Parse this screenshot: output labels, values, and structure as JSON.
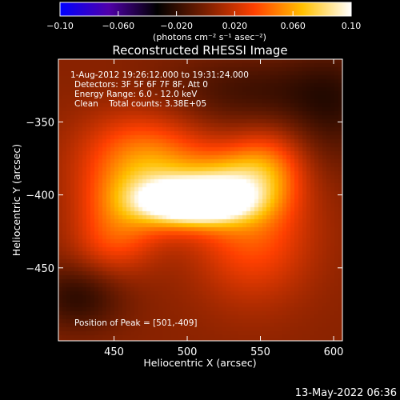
{
  "chart_data": {
    "type": "heatmap",
    "title": "Reconstructed RHESSI Image",
    "xlabel": "Heliocentric X (arcsec)",
    "ylabel": "Heliocentric Y (arcsec)",
    "xlim": [
      412,
      606
    ],
    "ylim": [
      -500,
      -307
    ],
    "x_ticks": [
      450,
      500,
      550,
      600
    ],
    "y_ticks": [
      -350,
      -400,
      -450
    ],
    "colorbar": {
      "min": -0.1,
      "max": 0.1,
      "ticks": [
        "-0.10",
        "-0.060",
        "-0.020",
        "0.020",
        "0.060",
        "0.10"
      ],
      "unit_label": "(photons cm⁻² s⁻¹ asec⁻²)",
      "colors": [
        "#0000ff",
        "#5000aa",
        "#000000",
        "#7a1f00",
        "#ff4000",
        "#ffc000",
        "#ffffff"
      ]
    },
    "annotations": [
      "1-Aug-2012 19:26:12.000 to 19:31:24.000",
      "Detectors: 3F 5F 6F 7F 8F, Att 0",
      "Energy Range: 6.0 - 12.0 keV",
      "Clean    Total counts: 3.38E+05"
    ],
    "peak_label": "Position of Peak = [501,-409]",
    "peak": {
      "x": 501,
      "y": -409,
      "value": 0.1
    },
    "sources": [
      {
        "x": 505,
        "y": -405,
        "sx": 22,
        "sy": 9,
        "amp": 0.11
      },
      {
        "x": 480,
        "y": -402,
        "sx": 28,
        "sy": 16,
        "amp": 0.05
      },
      {
        "x": 530,
        "y": -395,
        "sx": 22,
        "sy": 16,
        "amp": 0.05
      },
      {
        "x": 470,
        "y": -375,
        "sx": 30,
        "sy": 22,
        "amp": 0.045
      },
      {
        "x": 545,
        "y": -425,
        "sx": 28,
        "sy": 32,
        "amp": 0.035
      },
      {
        "x": 450,
        "y": -430,
        "sx": 20,
        "sy": 18,
        "amp": 0.03
      },
      {
        "x": 555,
        "y": -380,
        "sx": 18,
        "sy": 18,
        "amp": 0.03
      },
      {
        "x": 425,
        "y": -470,
        "sx": 22,
        "sy": 16,
        "amp": -0.025
      },
      {
        "x": 545,
        "y": -330,
        "sx": 45,
        "sy": 18,
        "amp": -0.02
      },
      {
        "x": 600,
        "y": -340,
        "sx": 22,
        "sy": 30,
        "amp": -0.018
      }
    ]
  },
  "footer": {
    "date": "13-May-2022 06:36"
  }
}
